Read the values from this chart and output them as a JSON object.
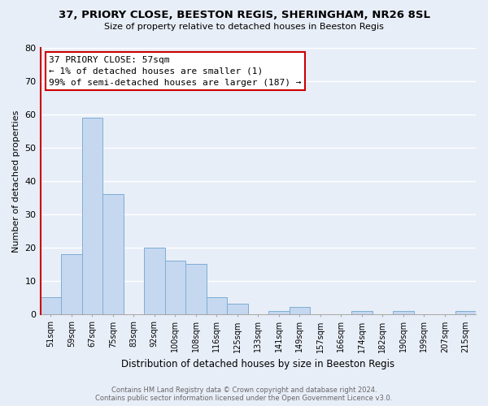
{
  "title": "37, PRIORY CLOSE, BEESTON REGIS, SHERINGHAM, NR26 8SL",
  "subtitle": "Size of property relative to detached houses in Beeston Regis",
  "xlabel": "Distribution of detached houses by size in Beeston Regis",
  "ylabel": "Number of detached properties",
  "bar_labels": [
    "51sqm",
    "59sqm",
    "67sqm",
    "75sqm",
    "83sqm",
    "92sqm",
    "100sqm",
    "108sqm",
    "116sqm",
    "125sqm",
    "133sqm",
    "141sqm",
    "149sqm",
    "157sqm",
    "166sqm",
    "174sqm",
    "182sqm",
    "190sqm",
    "199sqm",
    "207sqm",
    "215sqm"
  ],
  "bar_values": [
    5,
    18,
    59,
    36,
    0,
    20,
    16,
    15,
    5,
    3,
    0,
    1,
    2,
    0,
    0,
    1,
    0,
    1,
    0,
    0,
    1
  ],
  "bar_color": "#c5d8f0",
  "bar_edge_color": "#7eadd4",
  "annotation_line1": "37 PRIORY CLOSE: 57sqm",
  "annotation_line2": "← 1% of detached houses are smaller (1)",
  "annotation_line3": "99% of semi-detached houses are larger (187) →",
  "annotation_box_color": "#ffffff",
  "annotation_box_edge_color": "#cc0000",
  "red_line_x": 0.5,
  "ylim": [
    0,
    80
  ],
  "yticks": [
    0,
    10,
    20,
    30,
    40,
    50,
    60,
    70,
    80
  ],
  "background_color": "#e8eef8",
  "grid_color": "#ffffff",
  "footer_line1": "Contains HM Land Registry data © Crown copyright and database right 2024.",
  "footer_line2": "Contains public sector information licensed under the Open Government Licence v3.0."
}
